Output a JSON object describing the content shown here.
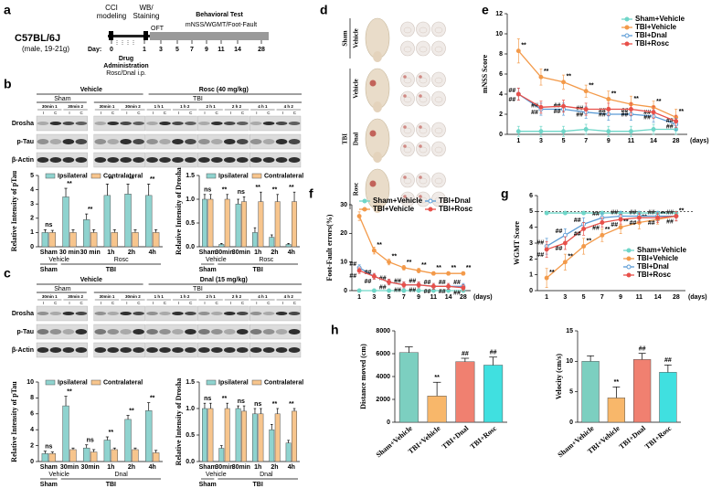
{
  "panel_labels": [
    "a",
    "b",
    "c",
    "d",
    "e",
    "f",
    "g",
    "h"
  ],
  "timeline": {
    "strain": "C57BL/6J",
    "strain_note": "(male, 19-21g)",
    "cci": [
      "CCI",
      "modeling"
    ],
    "wb": [
      "WB/",
      "Staining"
    ],
    "behavior": "Behavioral Test",
    "behavior_tests": "mNSS/WGMT/Foot-Fault",
    "oft": "OFT",
    "day_label": "Day:",
    "days": [
      "0",
      "1",
      "3",
      "5",
      "7",
      "9",
      "11",
      "14",
      "28"
    ],
    "drug": [
      "Drug",
      "Administration"
    ],
    "drug_note": "Rosc/Dnal i.p."
  },
  "blots": [
    {
      "treatment_left": "Vehicle",
      "treatment_right": "Rosc (40 mg/kg)",
      "group_left": "Sham",
      "group_right": "TBI",
      "lanes": [
        "30min 1",
        "30min 2",
        "30min 1",
        "30min 2",
        "1 h 1",
        "1 h 2",
        "2 h 1",
        "2 h 2",
        "4 h 1",
        "4 h 2"
      ],
      "sides": [
        "I",
        "C"
      ],
      "rows": [
        "Drosha",
        "p-Tau",
        "β-Actin"
      ]
    },
    {
      "treatment_left": "Vehicle",
      "treatment_right": "Dnal (15 mg/kg)",
      "group_left": "Sham",
      "group_right": "TBI",
      "lanes": [
        "30min 1",
        "30min 2",
        "30min 1",
        "30min 2",
        "1 h 1",
        "1 h 2",
        "2 h 1",
        "2 h 2",
        "4 h 1",
        "4 h 2"
      ],
      "sides": [
        "I",
        "C"
      ],
      "rows": [
        "Drosha",
        "p-Tau",
        "β-Actin"
      ]
    }
  ],
  "brains": {
    "groups": [
      {
        "name": "Sham",
        "rows": [
          "Vehicle"
        ]
      },
      {
        "name": "TBI",
        "rows": [
          "Vehicle",
          "Dnal",
          "Rosc"
        ]
      }
    ]
  },
  "chart_data": [
    {
      "type": "bar",
      "y_label": "Relative Intensity of pTau",
      "categories": [
        "Sham",
        "30 min",
        "30 min",
        "1h",
        "2h",
        "4h"
      ],
      "group_labels": [
        "Vehicle",
        "Rosc"
      ],
      "super_labels": [
        "Sham",
        "TBI"
      ],
      "series": [
        {
          "name": "Ipsilateral",
          "color": "#8fd3cf",
          "values": [
            1.0,
            3.5,
            1.9,
            3.6,
            3.7,
            3.6
          ],
          "errors": [
            0.2,
            0.6,
            0.4,
            0.8,
            0.7,
            0.8
          ]
        },
        {
          "name": "Contralateral",
          "color": "#f7c58d",
          "values": [
            1.0,
            1.0,
            1.0,
            1.0,
            1.0,
            1.0
          ],
          "errors": [
            0.15,
            0.2,
            0.2,
            0.2,
            0.2,
            0.2
          ]
        }
      ],
      "ylim": [
        0,
        5
      ],
      "yticks": [
        0,
        1,
        2,
        3,
        4,
        5
      ],
      "annotations": [
        "ns",
        "**",
        "**",
        "**",
        "**",
        "**"
      ]
    },
    {
      "type": "bar",
      "y_label": "Relative Intensity of Drosha",
      "categories": [
        "Sham",
        "30min",
        "30min",
        "1h",
        "2h",
        "4h"
      ],
      "group_labels": [
        "Vehicle",
        "Rosc"
      ],
      "super_labels": [
        "Sham",
        "TBI"
      ],
      "series": [
        {
          "name": "Ipsilateral",
          "color": "#8fd3cf",
          "values": [
            1.0,
            0.05,
            0.9,
            0.3,
            0.2,
            0.05
          ],
          "errors": [
            0.1,
            0.02,
            0.1,
            0.1,
            0.05,
            0.02
          ]
        },
        {
          "name": "Contralateral",
          "color": "#f7c58d",
          "values": [
            1.0,
            1.0,
            0.95,
            0.95,
            0.95,
            0.95
          ],
          "errors": [
            0.1,
            0.1,
            0.1,
            0.2,
            0.15,
            0.2
          ]
        }
      ],
      "ylim": [
        0,
        1.5
      ],
      "yticks": [
        {
          "value": 0,
          "label": "0.0"
        },
        0.5,
        {
          "value": 1,
          "label": "1.0"
        },
        1.5
      ],
      "annotations": [
        "ns",
        "**",
        "ns",
        "**",
        "**",
        "**"
      ]
    },
    {
      "type": "bar",
      "y_label": "Relative Intensity of pTau",
      "categories": [
        "Sham",
        "30min",
        "30min",
        "1h",
        "2h",
        "4h"
      ],
      "group_labels": [
        "Vehicle",
        "Dnal"
      ],
      "super_labels": [
        "Sham",
        "TBI"
      ],
      "series": [
        {
          "name": "Ipsilateral",
          "color": "#8fd3cf",
          "values": [
            1.0,
            7.0,
            1.7,
            2.7,
            5.3,
            6.4
          ],
          "errors": [
            0.3,
            1.2,
            0.4,
            0.4,
            0.5,
            1.0
          ]
        },
        {
          "name": "Contralateral",
          "color": "#f7c58d",
          "values": [
            1.0,
            1.5,
            1.2,
            1.5,
            1.5,
            1.1
          ],
          "errors": [
            0.2,
            0.2,
            0.3,
            0.2,
            0.2,
            0.3
          ]
        }
      ],
      "ylim": [
        0,
        10
      ],
      "yticks": [
        0,
        2,
        4,
        6,
        8,
        10
      ],
      "annotations": [
        "ns",
        "**",
        "ns",
        "**",
        "**",
        "**"
      ]
    },
    {
      "type": "bar",
      "y_label": "Relative Intensity of Drosha",
      "categories": [
        "Sham",
        "30min",
        "30min",
        "1h",
        "2h",
        "4h"
      ],
      "group_labels": [
        "Vehicle",
        "Dnal"
      ],
      "super_labels": [
        "Sham",
        "TBI"
      ],
      "series": [
        {
          "name": "Ipsilateral",
          "color": "#8fd3cf",
          "values": [
            1.0,
            0.25,
            1.0,
            0.9,
            0.6,
            0.35
          ],
          "errors": [
            0.1,
            0.05,
            0.05,
            0.1,
            0.1,
            0.05
          ]
        },
        {
          "name": "Contralateral",
          "color": "#f7c58d",
          "values": [
            1.0,
            1.0,
            0.95,
            0.9,
            0.9,
            0.95
          ],
          "errors": [
            0.1,
            0.1,
            0.1,
            0.1,
            0.1,
            0.05
          ]
        }
      ],
      "ylim": [
        0,
        1.5
      ],
      "yticks": [
        {
          "value": 0,
          "label": "0.0"
        },
        0.5,
        {
          "value": 1,
          "label": "1.0"
        },
        1.5
      ],
      "annotations": [
        "ns",
        "**",
        "ns",
        "ns",
        "**",
        "**"
      ]
    },
    {
      "type": "line",
      "y_label": "mNSS Score",
      "x_label": "(days)",
      "categories": [
        "1",
        "3",
        "5",
        "7",
        "9",
        "11",
        "14",
        "28"
      ],
      "ylim": [
        0,
        12
      ],
      "yticks": [
        0,
        2,
        4,
        6,
        8,
        10,
        12
      ],
      "legend": "upper right",
      "series": [
        {
          "name": "Sham+Vehicle",
          "color": "#6fd6c8",
          "values": [
            0.3,
            0.3,
            0.3,
            0.5,
            0.3,
            0.3,
            0.5,
            0.5
          ],
          "errors": [
            0.5,
            0.5,
            0.5,
            0.5,
            0.5,
            0.5,
            0.5,
            0.5
          ]
        },
        {
          "name": "TBI+Vehicle",
          "color": "#f39a4a",
          "values": [
            8.3,
            5.7,
            5.2,
            4.3,
            3.5,
            3.0,
            2.7,
            1.7
          ],
          "errors": [
            1.2,
            0.8,
            0.7,
            0.6,
            0.8,
            0.8,
            0.6,
            0.8
          ],
          "sig": [
            "**",
            "**",
            "**",
            "**",
            "**",
            "**",
            "**",
            "**"
          ]
        },
        {
          "name": "TBI+Dnal",
          "color": "#5b9bd5",
          "marker": "open",
          "values": [
            4.0,
            2.5,
            2.5,
            2.2,
            2.0,
            2.0,
            1.8,
            1.0
          ],
          "errors": [
            0.6,
            0.6,
            0.6,
            0.6,
            0.6,
            0.6,
            0.6,
            0.6
          ],
          "sig": [
            "##",
            "##",
            "##",
            "##",
            "##",
            "##",
            "##",
            "##"
          ]
        },
        {
          "name": "TBI+Rosc",
          "color": "#e8504a",
          "values": [
            4.0,
            2.7,
            2.8,
            2.5,
            2.5,
            2.5,
            2.2,
            1.3
          ],
          "errors": [
            0.6,
            0.6,
            0.6,
            0.6,
            0.6,
            0.6,
            0.6,
            0.6
          ],
          "sig": [
            "##",
            "##",
            "##",
            "##",
            "##",
            "##",
            "##",
            "##"
          ]
        }
      ]
    },
    {
      "type": "line",
      "y_label": "Foot-Fault errors(%)",
      "x_label": "(days)",
      "categories": [
        "1",
        "3",
        "5",
        "7",
        "9",
        "11",
        "14",
        "28"
      ],
      "ylim": [
        0,
        30
      ],
      "yticks": [
        0,
        10,
        20,
        30
      ],
      "legend": "upper center",
      "series": [
        {
          "name": "Sham+Vehicle",
          "color": "#6fd6c8",
          "values": [
            0,
            0,
            0,
            0,
            0,
            0,
            0,
            0
          ],
          "errors": [
            0.5,
            0.5,
            0.5,
            0.5,
            0.5,
            0.5,
            0.5,
            0.5
          ]
        },
        {
          "name": "TBI+Vehicle",
          "color": "#f39a4a",
          "values": [
            26,
            14,
            10,
            8,
            7,
            6,
            6,
            6
          ],
          "errors": [
            1.5,
            1.2,
            1,
            0.8,
            0.8,
            0.6,
            0.6,
            0.6
          ],
          "sig": [
            "**",
            "**",
            "**",
            "**",
            "**",
            "**",
            "**",
            "**"
          ]
        },
        {
          "name": "TBI+Dnal",
          "color": "#5b9bd5",
          "marker": "open",
          "values": [
            8,
            5,
            3,
            2,
            2,
            1.5,
            1.5,
            1.5
          ],
          "errors": [
            1,
            1,
            1,
            1,
            1,
            1,
            1,
            1
          ],
          "sig": [
            "##",
            "##",
            "##",
            "##",
            "##",
            "##",
            "##",
            "##"
          ]
        },
        {
          "name": "TBI+Rosc",
          "color": "#e8504a",
          "values": [
            7,
            5,
            3,
            2,
            2,
            1.5,
            1.5,
            1
          ],
          "errors": [
            1,
            1,
            1,
            1,
            1,
            1,
            1,
            1
          ],
          "sig": [
            "##",
            "##",
            "##",
            "##",
            "##",
            "##",
            "##",
            "##"
          ]
        }
      ]
    },
    {
      "type": "line",
      "y_label": "WGMT Score",
      "x_label": "(days)",
      "categories": [
        "1",
        "3",
        "5",
        "7",
        "9",
        "11",
        "14",
        "28"
      ],
      "ylim": [
        0,
        6
      ],
      "yticks": [
        0,
        1,
        2,
        3,
        4,
        5,
        6
      ],
      "legend": "lower right",
      "reference_line": 5,
      "series": [
        {
          "name": "Sham+Vehicle",
          "color": "#6fd6c8",
          "values": [
            4.9,
            4.9,
            4.9,
            4.9,
            4.9,
            4.9,
            4.9,
            4.9
          ],
          "errors": [
            0.1,
            0.1,
            0.1,
            0.1,
            0.1,
            0.1,
            0.1,
            0.1
          ]
        },
        {
          "name": "TBI+Vehicle",
          "color": "#f39a4a",
          "values": [
            0.8,
            1.8,
            2.8,
            3.5,
            4.0,
            4.3,
            4.5,
            4.7
          ],
          "errors": [
            0.6,
            0.5,
            0.5,
            0.4,
            0.4,
            0.4,
            0.3,
            0.3
          ],
          "sig": [
            "**",
            "**",
            "**",
            "**",
            "**",
            "**",
            "**",
            "**"
          ]
        },
        {
          "name": "TBI+Dnal",
          "color": "#5b9bd5",
          "marker": "open",
          "values": [
            2.8,
            3.5,
            4.2,
            4.6,
            4.7,
            4.7,
            4.7,
            4.7
          ],
          "errors": [
            0.5,
            0.4,
            0.4,
            0.3,
            0.3,
            0.3,
            0.3,
            0.3
          ],
          "sig": [
            "##",
            "##",
            "##",
            "##",
            "##",
            "##",
            "##",
            "##"
          ]
        },
        {
          "name": "TBI+Rosc",
          "color": "#e8504a",
          "values": [
            2.6,
            3.0,
            3.9,
            4.3,
            4.5,
            4.6,
            4.6,
            4.7
          ],
          "errors": [
            0.5,
            0.4,
            0.4,
            0.3,
            0.3,
            0.3,
            0.3,
            0.3
          ],
          "sig": [
            "##",
            "##",
            "##",
            "##",
            "##",
            "##",
            "##",
            "##"
          ]
        }
      ]
    },
    {
      "type": "bar",
      "y_label": "Distance moved (cm)",
      "categories": [
        "Sham+Vehicle",
        "TBI+Vehicle",
        "TBI+Dnal",
        "TBI+Rosc"
      ],
      "values": [
        6100,
        2300,
        5300,
        5000
      ],
      "errors": [
        500,
        1200,
        300,
        700
      ],
      "colors": [
        "#7ccfc0",
        "#f8b76a",
        "#f08070",
        "#40e0e0"
      ],
      "ylim": [
        0,
        8000
      ],
      "yticks": [
        0,
        2000,
        4000,
        6000,
        8000
      ],
      "annotations": [
        null,
        "**",
        "##",
        "##"
      ]
    },
    {
      "type": "bar",
      "y_label": "Velocity (cm/s)",
      "categories": [
        "Sham+Vehicle",
        "TBI+Vehicle",
        "TBI+Dnal",
        "TBI+Rosc"
      ],
      "values": [
        10,
        4,
        10.3,
        8.2
      ],
      "errors": [
        0.9,
        1.8,
        1.0,
        1.2
      ],
      "colors": [
        "#7ccfc0",
        "#f8b76a",
        "#f08070",
        "#40e0e0"
      ],
      "ylim": [
        0,
        15
      ],
      "yticks": [
        0,
        5,
        10,
        15
      ],
      "annotations": [
        null,
        "**",
        "##",
        "##"
      ]
    }
  ]
}
